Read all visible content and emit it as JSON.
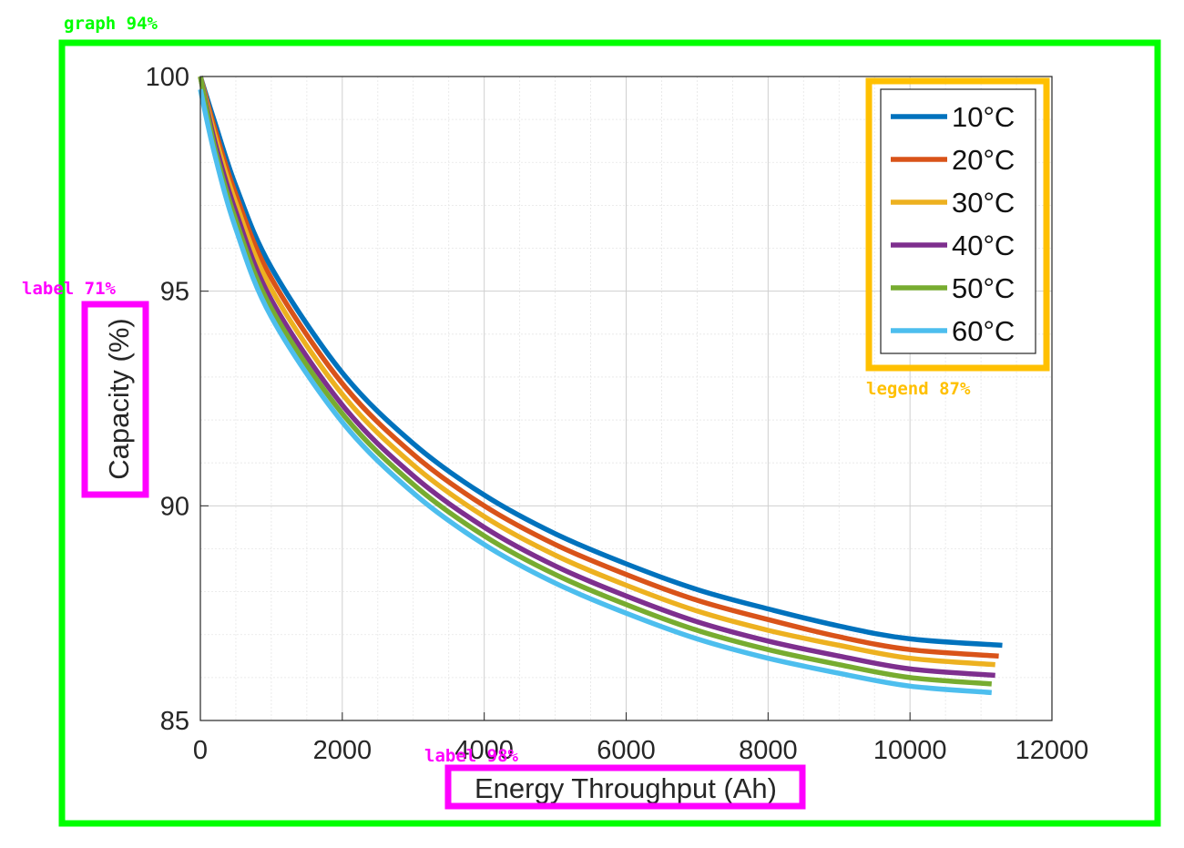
{
  "chart_data": {
    "type": "line",
    "title": "",
    "xlabel": "Energy Throughput (Ah)",
    "ylabel": "Capacity (%)",
    "xlim": [
      0,
      12000
    ],
    "ylim": [
      85,
      100
    ],
    "xticks": [
      "0",
      "2000",
      "4000",
      "6000",
      "8000",
      "10000",
      "12000"
    ],
    "yticks": [
      "85",
      "90",
      "95",
      "100"
    ],
    "grid": "major and minor",
    "legend_position": "top-right",
    "x": [
      0,
      200,
      500,
      1000,
      2000,
      3000,
      4000,
      5000,
      6000,
      7000,
      8000,
      9000,
      10000,
      11100
    ],
    "series": [
      {
        "name": "10°C",
        "color": "#0072bd",
        "x_end": 11300,
        "values": [
          100,
          98.95,
          97.45,
          95.55,
          93.1,
          91.45,
          90.25,
          89.35,
          88.65,
          88.05,
          87.6,
          87.2,
          86.9,
          86.75
        ]
      },
      {
        "name": "20°C",
        "color": "#d95319",
        "x_end": 11250,
        "values": [
          100,
          98.8,
          97.25,
          95.3,
          92.85,
          91.2,
          90.0,
          89.1,
          88.4,
          87.8,
          87.35,
          86.95,
          86.65,
          86.5
        ]
      },
      {
        "name": "30°C",
        "color": "#edb120",
        "x_end": 11200,
        "values": [
          100,
          98.65,
          97.05,
          95.05,
          92.6,
          90.95,
          89.75,
          88.85,
          88.15,
          87.55,
          87.1,
          86.75,
          86.45,
          86.3
        ]
      },
      {
        "name": "40°C",
        "color": "#7e2f8e",
        "x_end": 11200,
        "values": [
          100,
          98.5,
          96.85,
          94.8,
          92.35,
          90.7,
          89.5,
          88.6,
          87.9,
          87.3,
          86.85,
          86.5,
          86.2,
          86.05
        ]
      },
      {
        "name": "50°C",
        "color": "#77ac30",
        "x_end": 11150,
        "values": [
          100,
          98.35,
          96.65,
          94.6,
          92.15,
          90.5,
          89.3,
          88.4,
          87.7,
          87.1,
          86.65,
          86.3,
          86.0,
          85.85
        ]
      },
      {
        "name": "60°C",
        "color": "#4dbeee",
        "x_end": 11150,
        "values": [
          99.7,
          98.2,
          96.45,
          94.4,
          91.95,
          90.3,
          89.1,
          88.2,
          87.5,
          86.9,
          86.45,
          86.1,
          85.8,
          85.65
        ]
      }
    ]
  },
  "annotations": {
    "graph": {
      "text": "graph 94%",
      "color": "#00ff00"
    },
    "ylabel": {
      "text": "label 71%",
      "color": "#ff00ff"
    },
    "xlabel": {
      "text": "label 98%",
      "color": "#ff00ff"
    },
    "legend": {
      "text": "legend 87%",
      "color": "#ffc000"
    }
  }
}
